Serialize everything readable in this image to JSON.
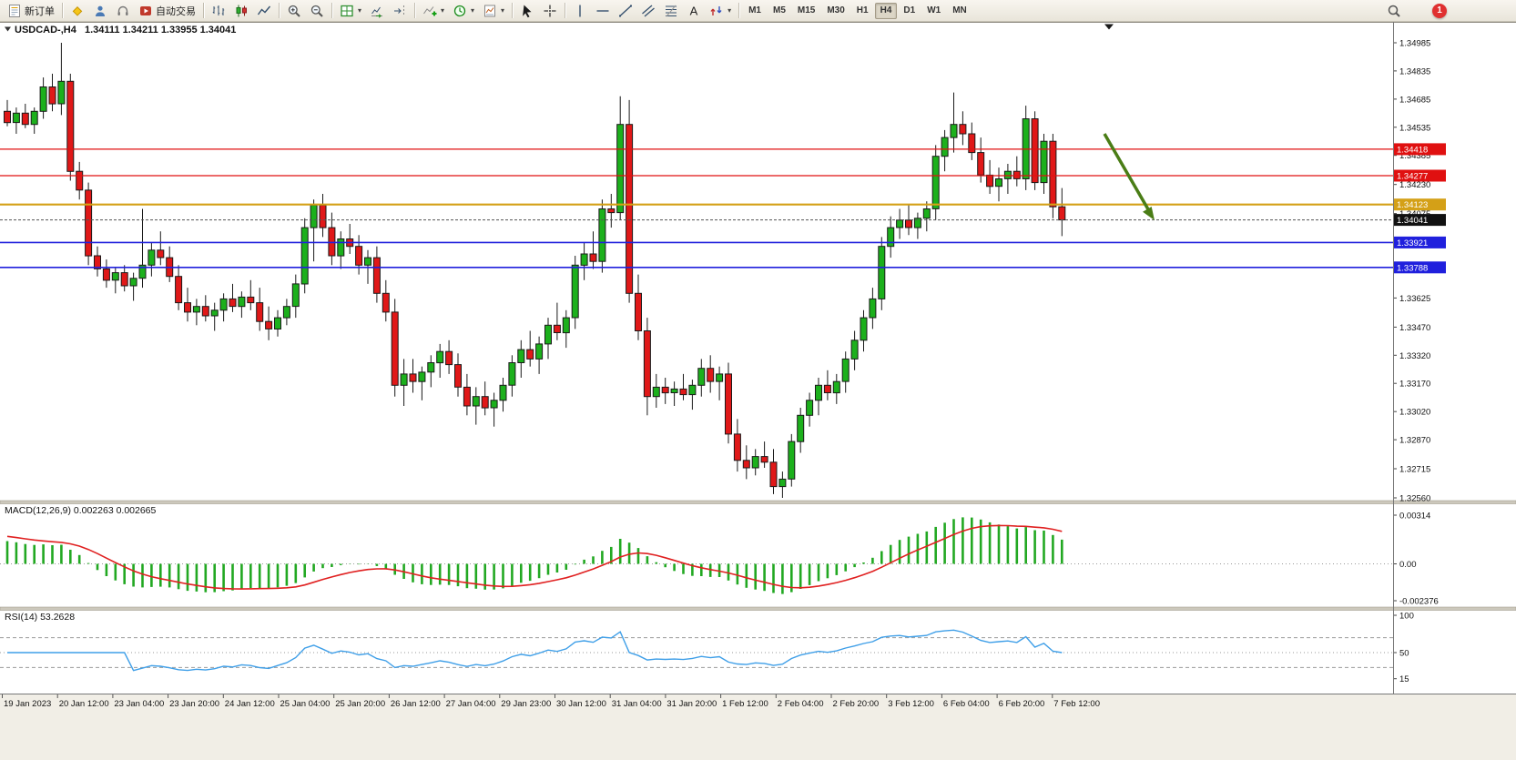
{
  "toolbar": {
    "new_order_label": "新订单",
    "auto_trading_label": "自动交易",
    "timeframes": [
      {
        "label": "M1",
        "active": false
      },
      {
        "label": "M5",
        "active": false
      },
      {
        "label": "M15",
        "active": false
      },
      {
        "label": "M30",
        "active": false
      },
      {
        "label": "H1",
        "active": false
      },
      {
        "label": "H4",
        "active": true
      },
      {
        "label": "D1",
        "active": false
      },
      {
        "label": "W1",
        "active": false
      },
      {
        "label": "MN",
        "active": false
      }
    ],
    "notification_count": "1"
  },
  "chart": {
    "symbol_period": "USDCAD-,H4",
    "ohlc_text": "1.34111 1.34211 1.33955 1.34041"
  },
  "chart_data": {
    "type": "candlestick",
    "symbol": "USDCAD",
    "period": "H4",
    "current_bar": {
      "open": 1.34111,
      "high": 1.34211,
      "low": 1.33955,
      "close": 1.34041
    },
    "current_price": 1.34041,
    "colors": {
      "bull": "#1cb01c",
      "bear": "#e01818",
      "outline": "#1a1a1a",
      "macd_hist": "#22a822",
      "macd_signal": "#e02020",
      "rsi_line": "#3f9fe8",
      "arrow": "#4a7d16",
      "badge_current": "#111111"
    },
    "price_axis_labels": [
      "1.34985",
      "1.34835",
      "1.34685",
      "1.34535",
      "1.34385",
      "1.34230",
      "1.34075",
      "1.33625",
      "1.33470",
      "1.33320",
      "1.33170",
      "1.33020",
      "1.32870",
      "1.32715",
      "1.32560"
    ],
    "hlines": [
      {
        "price": 1.34418,
        "color": "#e01010",
        "width": 1.3
      },
      {
        "price": 1.34277,
        "color": "#e01010",
        "width": 1.3
      },
      {
        "price": 1.34123,
        "color": "#d4a017",
        "width": 2.2
      },
      {
        "price": 1.33921,
        "color": "#2020dd",
        "width": 1.6
      },
      {
        "price": 1.33788,
        "color": "#2020dd",
        "width": 1.6
      }
    ],
    "time_labels": [
      "19 Jan 2023",
      "20 Jan 12:00",
      "23 Jan 04:00",
      "23 Jan 20:00",
      "24 Jan 12:00",
      "25 Jan 04:00",
      "25 Jan 20:00",
      "26 Jan 12:00",
      "27 Jan 04:00",
      "29 Jan 23:00",
      "30 Jan 12:00",
      "31 Jan 04:00",
      "31 Jan 20:00",
      "1 Feb 12:00",
      "2 Feb 04:00",
      "2 Feb 20:00",
      "3 Feb 12:00",
      "6 Feb 04:00",
      "6 Feb 20:00",
      "7 Feb 12:00"
    ],
    "candles": [
      [
        1.3462,
        1.3468,
        1.3454,
        1.3456
      ],
      [
        1.3456,
        1.3464,
        1.345,
        1.3461
      ],
      [
        1.3461,
        1.3466,
        1.3453,
        1.3455
      ],
      [
        1.3455,
        1.3464,
        1.345,
        1.3462
      ],
      [
        1.3462,
        1.348,
        1.3458,
        1.3475
      ],
      [
        1.3475,
        1.3482,
        1.3462,
        1.3466
      ],
      [
        1.3466,
        1.34985,
        1.346,
        1.3478
      ],
      [
        1.3478,
        1.3482,
        1.3425,
        1.343
      ],
      [
        1.343,
        1.3435,
        1.3415,
        1.342
      ],
      [
        1.342,
        1.3424,
        1.338,
        1.3385
      ],
      [
        1.3385,
        1.339,
        1.3374,
        1.3378
      ],
      [
        1.3378,
        1.3383,
        1.3368,
        1.3372
      ],
      [
        1.3372,
        1.3379,
        1.3365,
        1.3376
      ],
      [
        1.3376,
        1.338,
        1.3366,
        1.3369
      ],
      [
        1.3369,
        1.3376,
        1.3361,
        1.3373
      ],
      [
        1.3373,
        1.341,
        1.3368,
        1.338
      ],
      [
        1.338,
        1.3392,
        1.3374,
        1.3388
      ],
      [
        1.3388,
        1.3398,
        1.338,
        1.3384
      ],
      [
        1.3384,
        1.339,
        1.3371,
        1.3374
      ],
      [
        1.3374,
        1.338,
        1.3356,
        1.336
      ],
      [
        1.336,
        1.3368,
        1.335,
        1.3355
      ],
      [
        1.3355,
        1.3362,
        1.3348,
        1.3358
      ],
      [
        1.3358,
        1.3364,
        1.335,
        1.3353
      ],
      [
        1.3353,
        1.336,
        1.3345,
        1.3356
      ],
      [
        1.3356,
        1.3365,
        1.335,
        1.3362
      ],
      [
        1.3362,
        1.337,
        1.3355,
        1.3358
      ],
      [
        1.3358,
        1.3366,
        1.3352,
        1.3363
      ],
      [
        1.3363,
        1.3372,
        1.3356,
        1.336
      ],
      [
        1.336,
        1.3368,
        1.3345,
        1.335
      ],
      [
        1.335,
        1.3358,
        1.334,
        1.3346
      ],
      [
        1.3346,
        1.3356,
        1.3342,
        1.3352
      ],
      [
        1.3352,
        1.3362,
        1.3348,
        1.3358
      ],
      [
        1.3358,
        1.3375,
        1.3352,
        1.337
      ],
      [
        1.337,
        1.3405,
        1.3365,
        1.34
      ],
      [
        1.34,
        1.3415,
        1.3382,
        1.3412
      ],
      [
        1.3412,
        1.3418,
        1.3395,
        1.34
      ],
      [
        1.34,
        1.3408,
        1.338,
        1.3385
      ],
      [
        1.3385,
        1.3398,
        1.3378,
        1.3394
      ],
      [
        1.3394,
        1.3402,
        1.3386,
        1.339
      ],
      [
        1.339,
        1.3396,
        1.3375,
        1.338
      ],
      [
        1.338,
        1.3388,
        1.337,
        1.3384
      ],
      [
        1.3384,
        1.339,
        1.336,
        1.3365
      ],
      [
        1.3365,
        1.3372,
        1.335,
        1.3355
      ],
      [
        1.3355,
        1.3362,
        1.331,
        1.3316
      ],
      [
        1.3316,
        1.333,
        1.3305,
        1.3322
      ],
      [
        1.3322,
        1.333,
        1.3312,
        1.3318
      ],
      [
        1.3318,
        1.3326,
        1.3308,
        1.3323
      ],
      [
        1.3323,
        1.3332,
        1.3315,
        1.3328
      ],
      [
        1.3328,
        1.3338,
        1.332,
        1.3334
      ],
      [
        1.3334,
        1.334,
        1.3322,
        1.3327
      ],
      [
        1.3327,
        1.3333,
        1.331,
        1.3315
      ],
      [
        1.3315,
        1.3322,
        1.33,
        1.3305
      ],
      [
        1.3305,
        1.3315,
        1.3295,
        1.331
      ],
      [
        1.331,
        1.3318,
        1.33,
        1.3304
      ],
      [
        1.3304,
        1.3312,
        1.3294,
        1.3308
      ],
      [
        1.3308,
        1.332,
        1.3302,
        1.3316
      ],
      [
        1.3316,
        1.3332,
        1.331,
        1.3328
      ],
      [
        1.3328,
        1.334,
        1.332,
        1.3335
      ],
      [
        1.3335,
        1.3345,
        1.3326,
        1.333
      ],
      [
        1.333,
        1.3342,
        1.3322,
        1.3338
      ],
      [
        1.3338,
        1.3352,
        1.333,
        1.3348
      ],
      [
        1.3348,
        1.336,
        1.334,
        1.3344
      ],
      [
        1.3344,
        1.3356,
        1.3336,
        1.3352
      ],
      [
        1.3352,
        1.3385,
        1.3346,
        1.338
      ],
      [
        1.338,
        1.3392,
        1.3372,
        1.3386
      ],
      [
        1.3386,
        1.3398,
        1.3378,
        1.3382
      ],
      [
        1.3382,
        1.3415,
        1.3376,
        1.341
      ],
      [
        1.341,
        1.3418,
        1.34,
        1.3408
      ],
      [
        1.3408,
        1.347,
        1.3404,
        1.3455
      ],
      [
        1.3455,
        1.3468,
        1.336,
        1.3365
      ],
      [
        1.3365,
        1.3375,
        1.334,
        1.3345
      ],
      [
        1.3345,
        1.3352,
        1.33,
        1.331
      ],
      [
        1.331,
        1.3322,
        1.3304,
        1.3315
      ],
      [
        1.3315,
        1.332,
        1.3306,
        1.3312
      ],
      [
        1.3312,
        1.3318,
        1.3305,
        1.3314
      ],
      [
        1.3314,
        1.3322,
        1.3308,
        1.3311
      ],
      [
        1.3311,
        1.3319,
        1.3303,
        1.3316
      ],
      [
        1.3316,
        1.333,
        1.331,
        1.3325
      ],
      [
        1.3325,
        1.3332,
        1.3312,
        1.3318
      ],
      [
        1.3318,
        1.3326,
        1.3308,
        1.3322
      ],
      [
        1.3322,
        1.3328,
        1.3285,
        1.329
      ],
      [
        1.329,
        1.3298,
        1.327,
        1.3276
      ],
      [
        1.3276,
        1.3284,
        1.3266,
        1.3272
      ],
      [
        1.3272,
        1.3282,
        1.3268,
        1.3278
      ],
      [
        1.3278,
        1.3286,
        1.3272,
        1.3275
      ],
      [
        1.3275,
        1.3282,
        1.3258,
        1.3262
      ],
      [
        1.3262,
        1.327,
        1.3256,
        1.3266
      ],
      [
        1.3266,
        1.329,
        1.3262,
        1.3286
      ],
      [
        1.3286,
        1.3304,
        1.328,
        1.33
      ],
      [
        1.33,
        1.3312,
        1.3294,
        1.3308
      ],
      [
        1.3308,
        1.332,
        1.33,
        1.3316
      ],
      [
        1.3316,
        1.3324,
        1.3308,
        1.3312
      ],
      [
        1.3312,
        1.3322,
        1.3306,
        1.3318
      ],
      [
        1.3318,
        1.3334,
        1.3312,
        1.333
      ],
      [
        1.333,
        1.3345,
        1.3324,
        1.334
      ],
      [
        1.334,
        1.3356,
        1.3334,
        1.3352
      ],
      [
        1.3352,
        1.3368,
        1.3346,
        1.3362
      ],
      [
        1.3362,
        1.3395,
        1.3356,
        1.339
      ],
      [
        1.339,
        1.3406,
        1.3384,
        1.34
      ],
      [
        1.34,
        1.341,
        1.3394,
        1.3404
      ],
      [
        1.3404,
        1.3412,
        1.3396,
        1.34
      ],
      [
        1.34,
        1.3408,
        1.3394,
        1.3405
      ],
      [
        1.3405,
        1.3414,
        1.3398,
        1.341
      ],
      [
        1.341,
        1.3444,
        1.3404,
        1.3438
      ],
      [
        1.3438,
        1.3452,
        1.343,
        1.3448
      ],
      [
        1.3448,
        1.3472,
        1.344,
        1.3455
      ],
      [
        1.3455,
        1.3462,
        1.3444,
        1.345
      ],
      [
        1.345,
        1.3456,
        1.3436,
        1.344
      ],
      [
        1.344,
        1.3448,
        1.3424,
        1.3428
      ],
      [
        1.3428,
        1.3436,
        1.3418,
        1.3422
      ],
      [
        1.3422,
        1.3432,
        1.3414,
        1.3426
      ],
      [
        1.3426,
        1.3434,
        1.3418,
        1.343
      ],
      [
        1.343,
        1.3438,
        1.3422,
        1.3426
      ],
      [
        1.3426,
        1.3465,
        1.342,
        1.3458
      ],
      [
        1.3458,
        1.3462,
        1.342,
        1.3424
      ],
      [
        1.3424,
        1.345,
        1.3418,
        1.3446
      ],
      [
        1.3446,
        1.345,
        1.3405,
        1.34111
      ],
      [
        1.34111,
        1.34211,
        1.33955,
        1.34041
      ]
    ],
    "macd": {
      "label": "MACD(12,26,9) 0.002263 0.002665",
      "fast": 12,
      "slow": 26,
      "signal": 9,
      "value": 0.002263,
      "signal_value": 0.002665,
      "scale_labels": [
        "0.00314",
        "0.00",
        "-0.002376"
      ],
      "scale_max": 0.00314,
      "scale_min": -0.002376
    },
    "rsi": {
      "label": "RSI(14) 53.2628",
      "period": 14,
      "value": 53.2628,
      "scale_labels": [
        "100",
        "50",
        "15"
      ],
      "levels": [
        70,
        50,
        30
      ]
    }
  }
}
